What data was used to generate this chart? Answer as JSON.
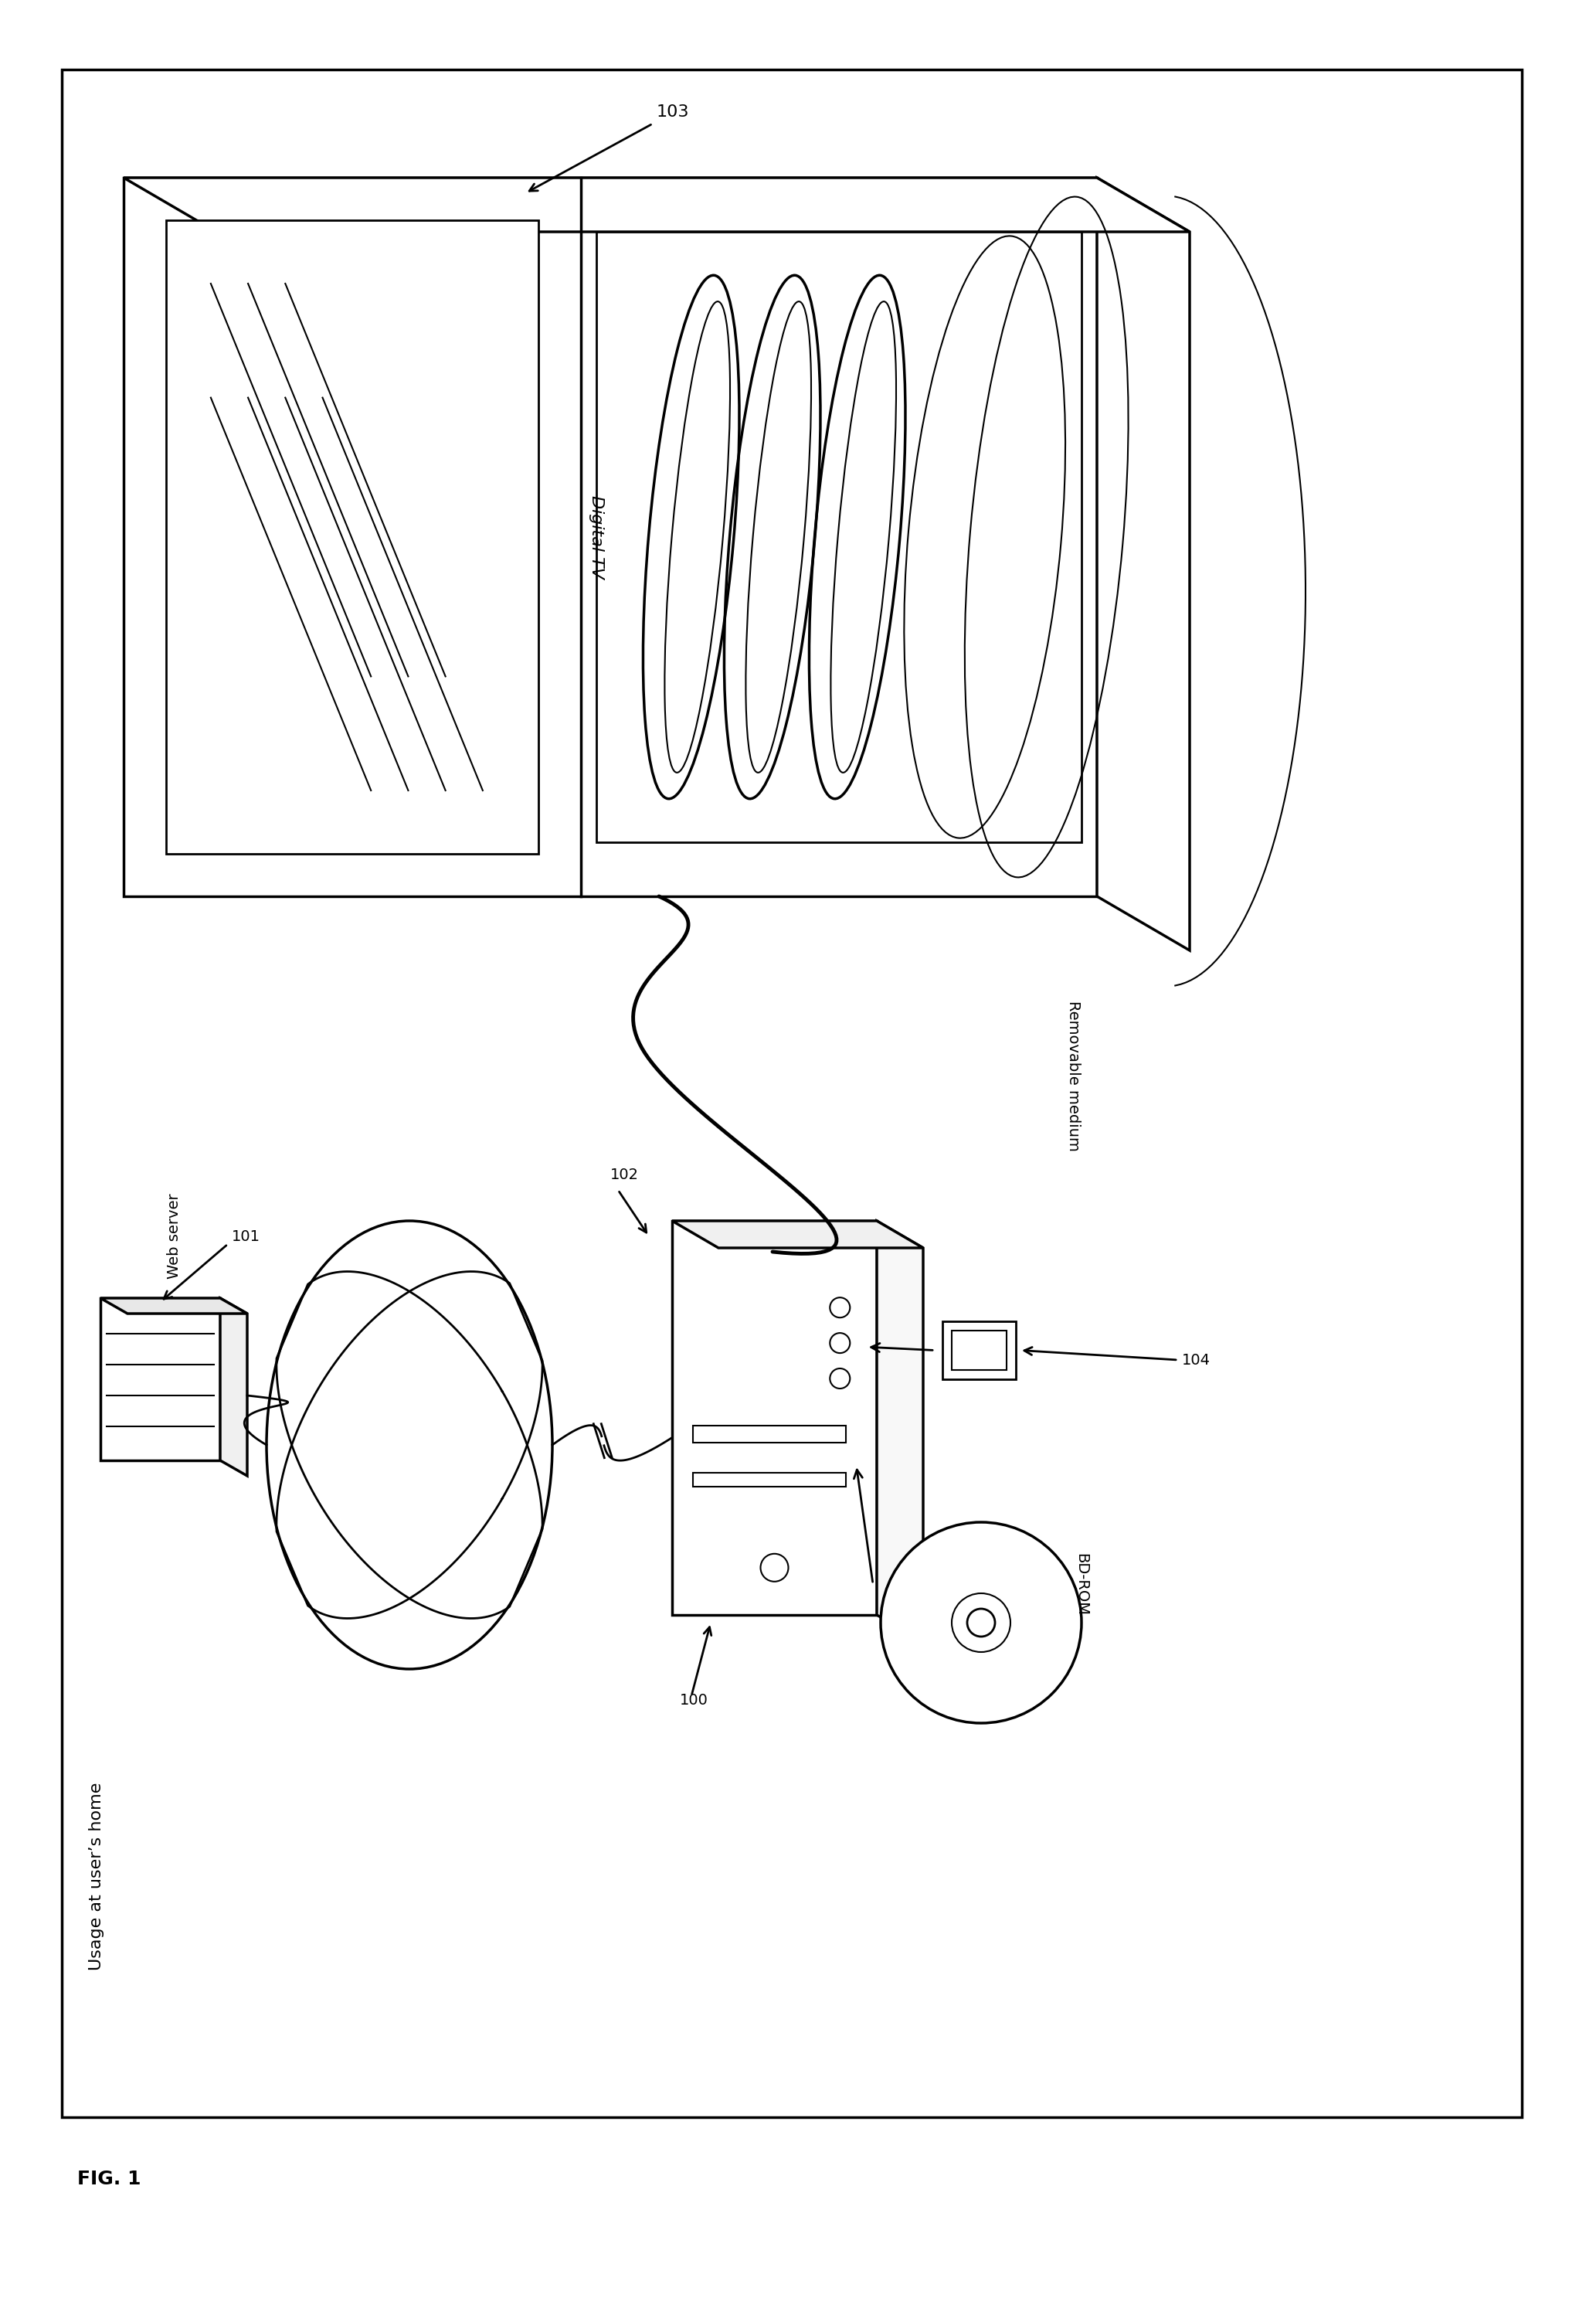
{
  "title": "FIG. 1",
  "bg_color": "#ffffff",
  "line_color": "#000000",
  "labels": {
    "fig": "FIG. 1",
    "usage": "Usage at user’s home",
    "web_server": "Web server",
    "digital_tv": "Digital TV",
    "bd_rom": "BD-ROM",
    "removable": "Removable medium",
    "n100": "100",
    "n101": "101",
    "n102": "102",
    "n103": "103",
    "n104": "104"
  },
  "font_size_label": 14,
  "font_size_fig": 18,
  "font_size_numbers": 14
}
